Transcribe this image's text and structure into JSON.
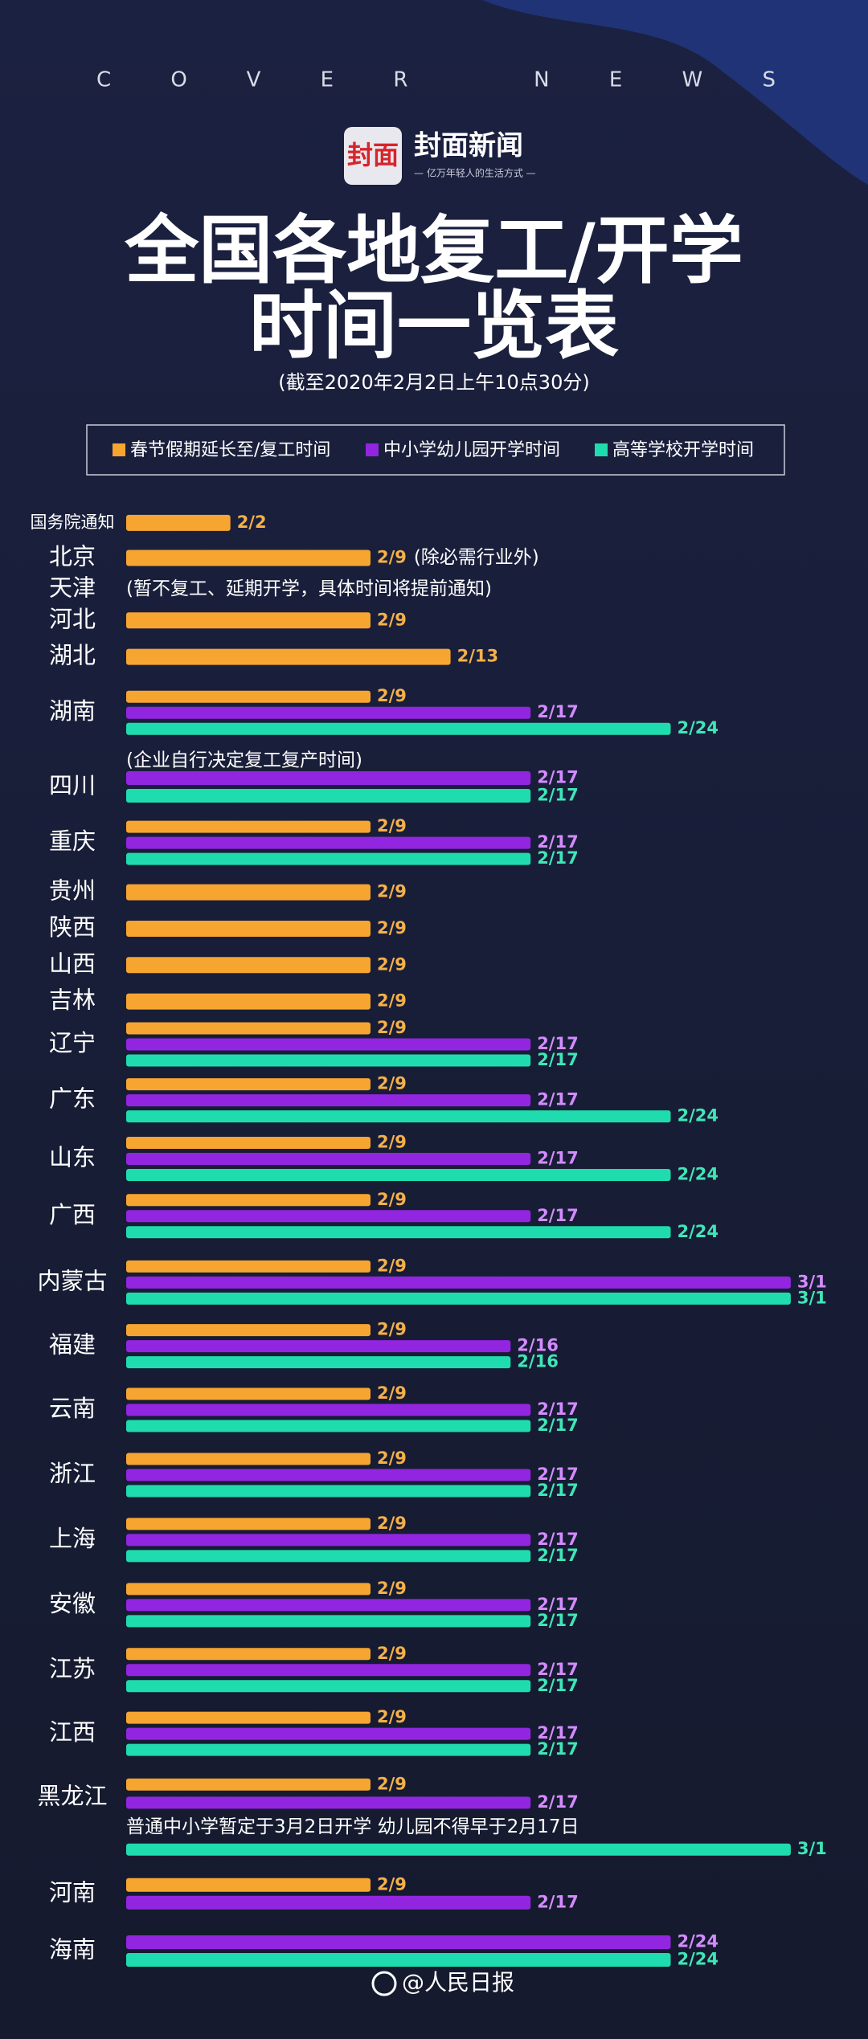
{
  "header": {
    "brand_line": "COVER NEWS",
    "logo_mark": "封面",
    "logo_name": "封面新闻",
    "logo_slogan": "— 亿万年轻人的生活方式 —",
    "title_lines": [
      "全国各地复工/开学",
      "时间一览表"
    ],
    "subtitle": "(截至2020年2月2日上午10点30分)"
  },
  "chart_data": {
    "type": "bar",
    "categories": [
      "国务院通知",
      "北京",
      "天津",
      "河北",
      "湖北",
      "湖南",
      "四川",
      "重庆",
      "贵州",
      "陕西",
      "山西",
      "吉林",
      "辽宁",
      "广东",
      "山东",
      "广西",
      "内蒙古",
      "福建",
      "云南",
      "浙江",
      "上海",
      "安徽",
      "江苏",
      "江西",
      "黑龙江",
      "河南",
      "海南"
    ],
    "notes": [
      null,
      "(除必需行业外)",
      "(暂不复工、延期开学，具体时间将提前通知)",
      null,
      null,
      null,
      "(企业自行决定复工复产时间)",
      null,
      null,
      null,
      null,
      null,
      null,
      null,
      null,
      null,
      null,
      null,
      null,
      null,
      null,
      null,
      null,
      null,
      "普通中小学暂定于3月2日开学 幼儿园不得早于2月17日",
      null,
      null
    ],
    "series": [
      {
        "name": "春节假期延长至/复工时间",
        "color": "#f7a531",
        "label_color": "#f5b04a",
        "values": [
          "2/2",
          "2/9",
          null,
          "2/9",
          "2/13",
          "2/9",
          null,
          "2/9",
          "2/9",
          "2/9",
          "2/9",
          "2/9",
          "2/9",
          "2/9",
          "2/9",
          "2/9",
          "2/9",
          "2/9",
          "2/9",
          "2/9",
          "2/9",
          "2/9",
          "2/9",
          "2/9",
          "2/9",
          "2/9",
          null
        ]
      },
      {
        "name": "中小学幼儿园开学时间",
        "color": "#9226e0",
        "label_color": "#d38bff",
        "values": [
          null,
          null,
          null,
          null,
          null,
          "2/17",
          "2/17",
          "2/17",
          null,
          null,
          null,
          null,
          "2/17",
          "2/17",
          "2/17",
          "2/17",
          "3/1",
          "2/16",
          "2/17",
          "2/17",
          "2/17",
          "2/17",
          "2/17",
          "2/17",
          "2/17",
          "2/17",
          "2/24"
        ]
      },
      {
        "name": "高等学校开学时间",
        "color": "#1fdcae",
        "label_color": "#3fe6b8",
        "values": [
          null,
          null,
          null,
          null,
          null,
          "2/24",
          "2/17",
          "2/17",
          null,
          null,
          null,
          null,
          "2/17",
          "2/24",
          "2/24",
          "2/24",
          "3/1",
          "2/16",
          "2/17",
          "2/17",
          "2/17",
          "2/17",
          "2/17",
          "2/17",
          "3/1",
          null,
          "2/24"
        ]
      }
    ]
  },
  "footer": {
    "source": "@人民日报"
  }
}
